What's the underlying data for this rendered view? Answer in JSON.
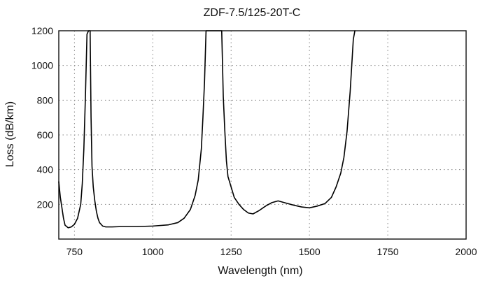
{
  "chart_data": {
    "type": "line",
    "title": "ZDF-7.5/125-20T-C",
    "xlabel": "Wavelength (nm)",
    "ylabel": "Loss (dB/km)",
    "xlim": [
      700,
      2000
    ],
    "ylim": [
      0,
      1200
    ],
    "x_ticks": [
      750,
      1000,
      1250,
      1500,
      1750,
      2000
    ],
    "y_ticks": [
      200,
      400,
      600,
      800,
      1000,
      1200
    ],
    "grid": true,
    "series": [
      {
        "color": "#000000",
        "points": [
          [
            700,
            330
          ],
          [
            705,
            240
          ],
          [
            710,
            180
          ],
          [
            715,
            120
          ],
          [
            720,
            80
          ],
          [
            730,
            65
          ],
          [
            740,
            70
          ],
          [
            750,
            85
          ],
          [
            760,
            120
          ],
          [
            770,
            200
          ],
          [
            775,
            320
          ],
          [
            780,
            520
          ],
          [
            785,
            820
          ],
          [
            790,
            1180
          ],
          [
            795,
            1200
          ],
          [
            800,
            1200
          ],
          [
            803,
            700
          ],
          [
            806,
            420
          ],
          [
            810,
            300
          ],
          [
            815,
            220
          ],
          [
            820,
            160
          ],
          [
            825,
            120
          ],
          [
            830,
            95
          ],
          [
            840,
            75
          ],
          [
            850,
            70
          ],
          [
            870,
            70
          ],
          [
            900,
            72
          ],
          [
            950,
            72
          ],
          [
            1000,
            75
          ],
          [
            1050,
            82
          ],
          [
            1080,
            95
          ],
          [
            1100,
            120
          ],
          [
            1120,
            170
          ],
          [
            1135,
            250
          ],
          [
            1145,
            340
          ],
          [
            1155,
            520
          ],
          [
            1160,
            700
          ],
          [
            1165,
            900
          ],
          [
            1170,
            1200
          ],
          [
            1180,
            1200
          ],
          [
            1200,
            1200
          ],
          [
            1220,
            1200
          ],
          [
            1225,
            820
          ],
          [
            1230,
            620
          ],
          [
            1235,
            450
          ],
          [
            1240,
            360
          ],
          [
            1250,
            300
          ],
          [
            1260,
            240
          ],
          [
            1275,
            200
          ],
          [
            1290,
            170
          ],
          [
            1305,
            150
          ],
          [
            1320,
            145
          ],
          [
            1340,
            165
          ],
          [
            1360,
            190
          ],
          [
            1380,
            210
          ],
          [
            1400,
            220
          ],
          [
            1420,
            210
          ],
          [
            1450,
            195
          ],
          [
            1475,
            185
          ],
          [
            1500,
            180
          ],
          [
            1525,
            190
          ],
          [
            1550,
            205
          ],
          [
            1570,
            240
          ],
          [
            1585,
            300
          ],
          [
            1600,
            380
          ],
          [
            1610,
            470
          ],
          [
            1620,
            620
          ],
          [
            1630,
            850
          ],
          [
            1640,
            1150
          ],
          [
            1645,
            1200
          ]
        ]
      }
    ]
  }
}
